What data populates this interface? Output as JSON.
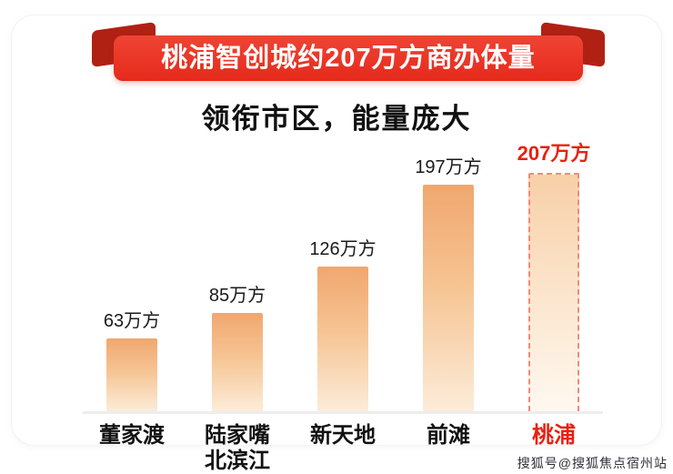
{
  "banner": {
    "title": "桃浦智创城约207万方商办体量"
  },
  "subtitle": "领衔市区，能量庞大",
  "watermark": "搜狐号@搜狐焦点宿州站",
  "chart_data": {
    "type": "bar",
    "title": "领衔市区，能量庞大",
    "categories": [
      "董家渡",
      "陆家嘴\n北滨江",
      "新天地",
      "前滩",
      "桃浦"
    ],
    "values": [
      63,
      85,
      126,
      197,
      207
    ],
    "value_labels": [
      "63万方",
      "85万方",
      "126万方",
      "197万方",
      "207万方"
    ],
    "unit": "万方",
    "highlight_index": 4,
    "ylim": [
      0,
      220
    ],
    "grid": false,
    "legend": "none",
    "colors": {
      "banner_red": "#e52a1c",
      "fold_dark_red": "#b02114",
      "bar_top": "#f0a76f",
      "bar_bottom": "#fcecd9",
      "highlight_red": "#e8210f",
      "highlight_border": "#f2897a",
      "baseline": "#ededed"
    }
  }
}
